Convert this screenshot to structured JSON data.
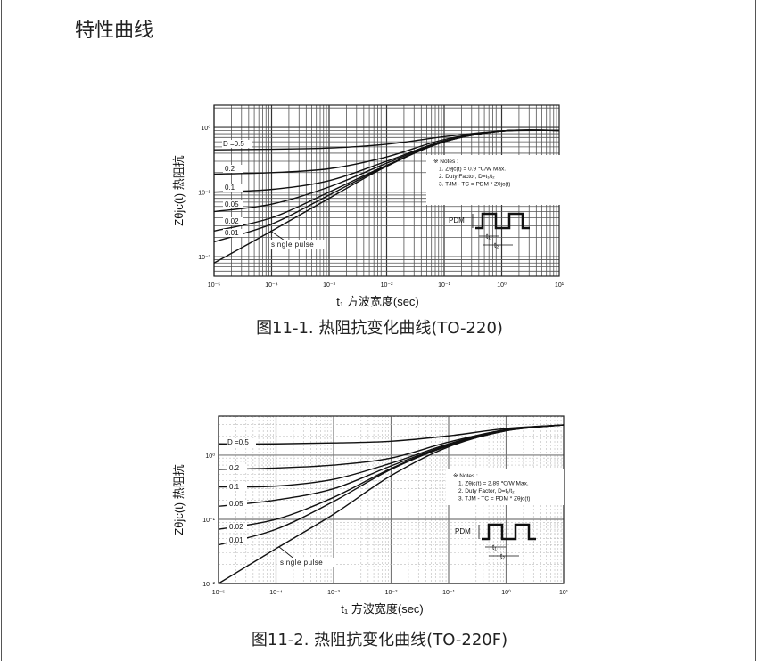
{
  "page": {
    "title": "特性曲线"
  },
  "chart_data": [
    {
      "type": "line",
      "caption": "图11-1. 热阻抗变化曲线(TO-220)",
      "xlabel": "t₁ 方波宽度(sec)",
      "ylabel": "Zθjc(t) 热阻抗",
      "xscale": "log",
      "yscale": "log",
      "xlim": [
        1e-05,
        10
      ],
      "ylim": [
        0.005,
        2.2
      ],
      "grid": "dense solid",
      "xticks": [
        "10⁻⁵",
        "10⁻⁴",
        "10⁻³",
        "10⁻²",
        "10⁻¹",
        "10⁰",
        "10¹"
      ],
      "yticks": [
        "10⁰",
        "10⁻¹",
        "10⁻²"
      ],
      "x": [
        1e-05,
        0.0001,
        0.001,
        0.01,
        0.1,
        1,
        10
      ],
      "series": [
        {
          "name": "D =0.5",
          "values": [
            0.45,
            0.46,
            0.48,
            0.55,
            0.72,
            0.88,
            0.9
          ]
        },
        {
          "name": "0.2",
          "values": [
            0.19,
            0.2,
            0.23,
            0.35,
            0.65,
            0.88,
            0.9
          ]
        },
        {
          "name": "0.1",
          "values": [
            0.1,
            0.11,
            0.15,
            0.3,
            0.62,
            0.88,
            0.9
          ]
        },
        {
          "name": "0.05",
          "values": [
            0.05,
            0.065,
            0.12,
            0.28,
            0.61,
            0.88,
            0.9
          ]
        },
        {
          "name": "0.02",
          "values": [
            0.025,
            0.04,
            0.1,
            0.26,
            0.6,
            0.88,
            0.9
          ]
        },
        {
          "name": "0.01",
          "values": [
            0.017,
            0.032,
            0.09,
            0.255,
            0.6,
            0.88,
            0.9
          ]
        },
        {
          "name": "single pulse",
          "values": [
            0.008,
            0.025,
            0.08,
            0.25,
            0.6,
            0.88,
            0.9
          ]
        }
      ],
      "notes": [
        "※ Notes :",
        "1. Zθjc(t) = 0.9 ℃/W Max.",
        "2. Duty Factor, D=t₁/t₂",
        "3. TJM - TC = PDM * Zθjc(t)"
      ],
      "pulse_labels": {
        "p": "PDM",
        "t1": "t₁",
        "t2": "t₂"
      }
    },
    {
      "type": "line",
      "caption": "图11-2. 热阻抗变化曲线(TO-220F)",
      "xlabel": "t₁ 方波宽度(sec)",
      "ylabel": "Zθjc(t) 热阻抗",
      "xscale": "log",
      "yscale": "log",
      "xlim": [
        1e-05,
        10
      ],
      "ylim": [
        0.01,
        4
      ],
      "grid": "major solid, minor dashed",
      "xticks": [
        "10⁻⁵",
        "10⁻⁴",
        "10⁻³",
        "10⁻²",
        "10⁻¹",
        "10⁰",
        "10¹"
      ],
      "yticks": [
        "10⁰",
        "10⁻¹",
        "10⁻²"
      ],
      "x": [
        1e-05,
        0.0001,
        0.001,
        0.01,
        0.1,
        1,
        10
      ],
      "series": [
        {
          "name": "D =0.5",
          "values": [
            1.5,
            1.5,
            1.55,
            1.65,
            2.0,
            2.6,
            2.95
          ]
        },
        {
          "name": "0.2",
          "values": [
            0.6,
            0.63,
            0.7,
            0.9,
            1.6,
            2.5,
            2.95
          ]
        },
        {
          "name": "0.1",
          "values": [
            0.32,
            0.33,
            0.42,
            0.75,
            1.5,
            2.5,
            2.95
          ]
        },
        {
          "name": "0.05",
          "values": [
            0.16,
            0.2,
            0.3,
            0.68,
            1.45,
            2.45,
            2.95
          ]
        },
        {
          "name": "0.02",
          "values": [
            0.07,
            0.1,
            0.22,
            0.62,
            1.45,
            2.45,
            2.95
          ]
        },
        {
          "name": "0.01",
          "values": [
            0.04,
            0.07,
            0.19,
            0.6,
            1.4,
            2.4,
            2.95
          ]
        },
        {
          "name": "single pulse",
          "values": [
            0.01,
            0.035,
            0.12,
            0.48,
            1.35,
            2.4,
            2.95
          ]
        }
      ],
      "notes": [
        "※ Notes :",
        "1. Zθjc(t) = 2.89 ℃/W Max.",
        "2. Duty Factor, D=t₁/t₂",
        "3. TJM - TC = PDM * Zθjc(t)"
      ],
      "pulse_labels": {
        "p": "PDM",
        "t1": "t₁",
        "t2": "t₂"
      }
    }
  ]
}
